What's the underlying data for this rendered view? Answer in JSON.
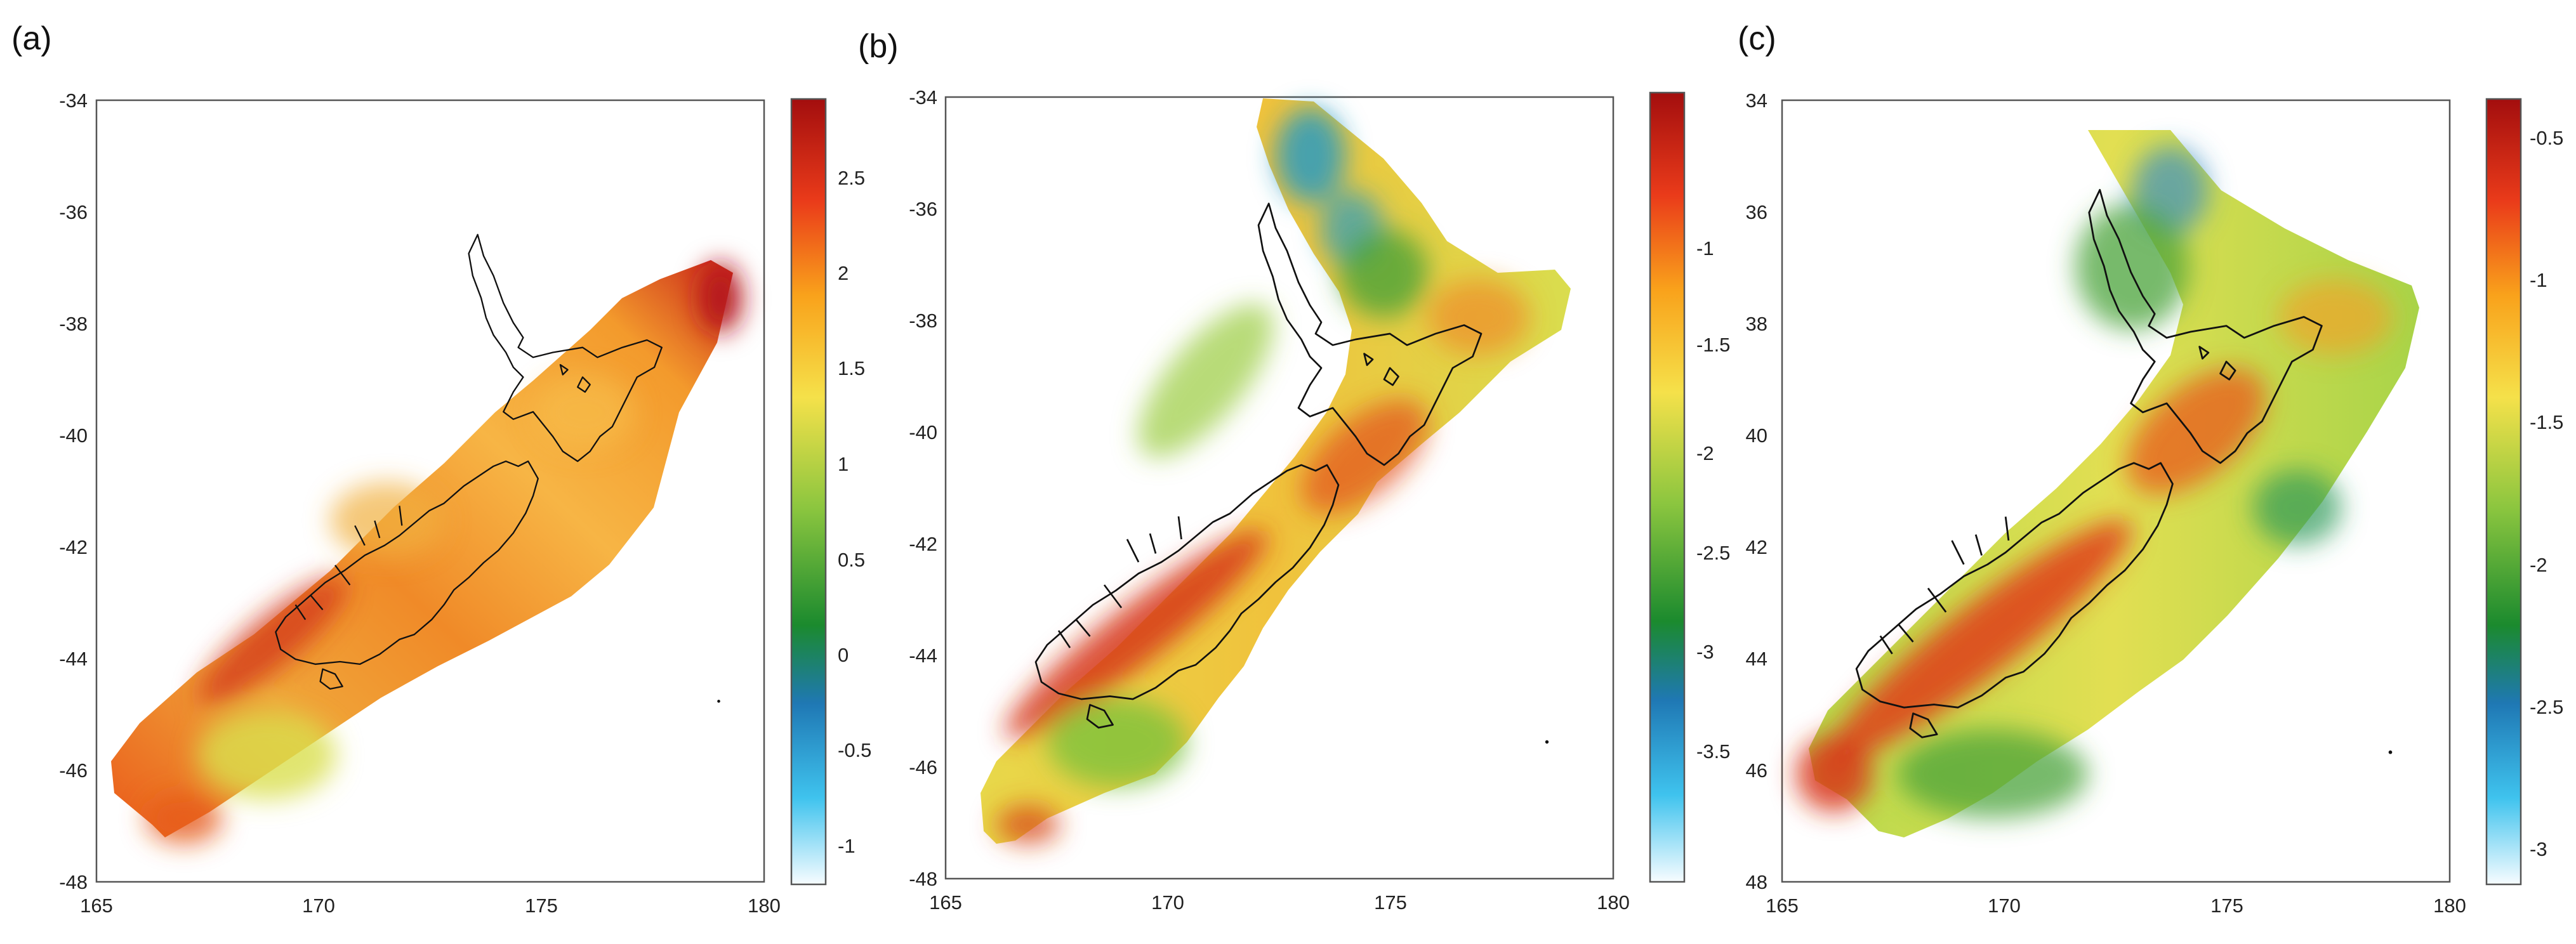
{
  "chart_data": [
    {
      "type": "heatmap",
      "panel_label": "(a)",
      "x_ticks": [
        "165",
        "170",
        "175",
        "180"
      ],
      "y_ticks": [
        "-34",
        "-36",
        "-38",
        "-40",
        "-42",
        "-44",
        "-46",
        "-48"
      ],
      "xlim": [
        165,
        180
      ],
      "ylim": [
        -48,
        -34
      ],
      "colorbar": {
        "ticks": [
          "2.5",
          "2",
          "1.5",
          "1",
          "0.5",
          "0",
          "-0.5",
          "-1"
        ],
        "range": [
          -1.2,
          2.9
        ]
      },
      "coverage": "central and southern North Island plus South Island"
    },
    {
      "type": "heatmap",
      "panel_label": "(b)",
      "x_ticks": [
        "165",
        "170",
        "175",
        "180"
      ],
      "y_ticks": [
        "-34",
        "-36",
        "-38",
        "-40",
        "-42",
        "-44",
        "-46",
        "-48"
      ],
      "xlim": [
        165,
        180
      ],
      "ylim": [
        -48,
        -34
      ],
      "colorbar": {
        "ticks": [
          "-1",
          "-1.5",
          "-2",
          "-2.5",
          "-3",
          "-3.5"
        ],
        "range": [
          -3.7,
          -0.3
        ]
      },
      "coverage": "all of New Zealand"
    },
    {
      "type": "heatmap",
      "panel_label": "(c)",
      "x_ticks": [
        "165",
        "170",
        "175",
        "180"
      ],
      "y_ticks": [
        "34",
        "36",
        "38",
        "40",
        "42",
        "44",
        "46",
        "48"
      ],
      "xlim": [
        165,
        180
      ],
      "ylim": [
        34,
        48
      ],
      "colorbar": {
        "ticks": [
          "-0.5",
          "-1",
          "-1.5",
          "-2",
          "-2.5",
          "-3"
        ],
        "range": [
          -3.15,
          -0.35
        ]
      },
      "coverage": "all of New Zealand"
    }
  ],
  "colors": {
    "scale": [
      "#f7fcff",
      "#3fc3ee",
      "#1f78b4",
      "#1b8a2e",
      "#8cc63f",
      "#f5e14a",
      "#f9a21b",
      "#ea3b1a",
      "#a30e0e"
    ]
  }
}
